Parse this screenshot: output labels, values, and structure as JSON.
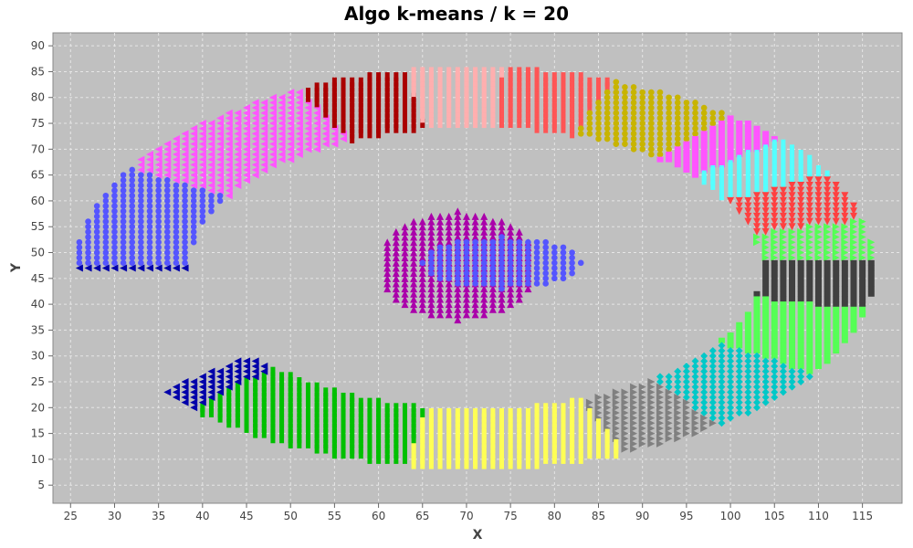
{
  "chart_data": {
    "type": "scatter",
    "title": "Algo k-means / k = 20",
    "xlabel": "X",
    "ylabel": "Y",
    "xlim": [
      23,
      119.5
    ],
    "ylim": [
      1.5,
      92.5
    ],
    "xticks": [
      25,
      30,
      35,
      40,
      45,
      50,
      55,
      60,
      65,
      70,
      75,
      80,
      85,
      90,
      95,
      100,
      105,
      110,
      115
    ],
    "yticks": [
      5,
      10,
      15,
      20,
      25,
      30,
      35,
      40,
      45,
      50,
      55,
      60,
      65,
      70,
      75,
      80,
      85,
      90
    ],
    "grid": true,
    "plot_background": "#c0c0c0",
    "series": [
      {
        "color": "#0000aa",
        "marker": "triangle-left",
        "region": {
          "type": "ring",
          "cx": 71,
          "cy": 47,
          "rx": 39,
          "ry": 33,
          "w": 6,
          "a0": 180,
          "a1": 218
        }
      },
      {
        "color": "#5555ff",
        "marker": "circle",
        "region": {
          "type": "ring",
          "cx": 71,
          "cy": 47,
          "rx": 39,
          "ry": 33,
          "w": 6,
          "a0": 150,
          "a1": 180
        }
      },
      {
        "color": "#ff55ff",
        "marker": "triangle-left",
        "region": {
          "type": "ring",
          "cx": 71,
          "cy": 47,
          "rx": 39,
          "ry": 33,
          "w": 6,
          "a0": 116,
          "a1": 150
        }
      },
      {
        "color": "#aa0000",
        "marker": "bar",
        "region": {
          "type": "ring",
          "cx": 71,
          "cy": 47,
          "rx": 39,
          "ry": 33,
          "w": 6,
          "a0": 100,
          "a1": 116
        }
      },
      {
        "color": "#ffafaf",
        "marker": "bar",
        "region": {
          "type": "ring",
          "cx": 71,
          "cy": 47,
          "rx": 39,
          "ry": 33,
          "w": 6,
          "a0": 86,
          "a1": 100
        }
      },
      {
        "color": "#ff5555",
        "marker": "bar",
        "region": {
          "type": "ring",
          "cx": 71,
          "cy": 47,
          "rx": 39,
          "ry": 33,
          "w": 6,
          "a0": 70,
          "a1": 86
        }
      },
      {
        "color": "#c8b400",
        "marker": "circle",
        "region": {
          "type": "ring",
          "cx": 71,
          "cy": 47,
          "rx": 39,
          "ry": 33,
          "w": 6,
          "a0": 50,
          "a1": 70
        }
      },
      {
        "color": "#ff55ff",
        "marker": "square",
        "region": {
          "type": "ring",
          "cx": 71,
          "cy": 47,
          "rx": 39,
          "ry": 33,
          "w": 6,
          "a0": 40,
          "a1": 50
        }
      },
      {
        "color": "#55ffff",
        "marker": "bar",
        "region": {
          "type": "ring",
          "cx": 71,
          "cy": 47,
          "rx": 39,
          "ry": 33,
          "w": 6,
          "a0": 28,
          "a1": 40
        }
      },
      {
        "color": "#ff4040",
        "marker": "triangle-down",
        "region": {
          "type": "ring",
          "cx": 71,
          "cy": 47,
          "rx": 39,
          "ry": 33,
          "w": 6,
          "a0": 14,
          "a1": 28
        }
      },
      {
        "color": "#55ff55",
        "marker": "triangle-right",
        "region": {
          "type": "ring",
          "cx": 71,
          "cy": 47,
          "rx": 39,
          "ry": 33,
          "w": 6,
          "a0": 3,
          "a1": 14
        }
      },
      {
        "color": "#404040",
        "marker": "square",
        "region": {
          "type": "ring",
          "cx": 71,
          "cy": 47,
          "rx": 39,
          "ry": 33,
          "w": 6,
          "a0": -12,
          "a1": 3
        }
      },
      {
        "color": "#55ff55",
        "marker": "square",
        "region": {
          "type": "ring",
          "cx": 71,
          "cy": 47,
          "rx": 39,
          "ry": 33,
          "w": 6,
          "a0": -32,
          "a1": -12
        }
      },
      {
        "color": "#00c8c8",
        "marker": "diamond",
        "region": {
          "type": "ring",
          "cx": 71,
          "cy": 47,
          "rx": 39,
          "ry": 33,
          "w": 6,
          "a0": -52,
          "a1": -32
        }
      },
      {
        "color": "#808080",
        "marker": "triangle-right",
        "region": {
          "type": "ring",
          "cx": 71,
          "cy": 47,
          "rx": 39,
          "ry": 33,
          "w": 6,
          "a0": -68,
          "a1": -52
        }
      },
      {
        "color": "#ffff55",
        "marker": "bar",
        "region": {
          "type": "ring",
          "cx": 71,
          "cy": 47,
          "rx": 39,
          "ry": 33,
          "w": 6,
          "a0": -100,
          "a1": -68
        }
      },
      {
        "color": "#00c000",
        "marker": "bar",
        "region": {
          "type": "ring",
          "cx": 71,
          "cy": 47,
          "rx": 39,
          "ry": 33,
          "w": 6,
          "a0": -135,
          "a1": -100
        }
      },
      {
        "color": "#0000aa",
        "marker": "triangle-left",
        "region": {
          "type": "ring",
          "cx": 71,
          "cy": 47,
          "rx": 39,
          "ry": 33,
          "w": 6,
          "a0": -142,
          "a1": -135
        }
      },
      {
        "color": "#aa00aa",
        "marker": "triangle-up",
        "region": {
          "type": "blob",
          "x0": 60,
          "x1": 78,
          "y0": 37,
          "y1": 58
        }
      },
      {
        "color": "#5555ff",
        "marker": "circle",
        "region": {
          "type": "blob",
          "x0": 65,
          "x1": 83,
          "y0": 43,
          "y1": 53
        }
      }
    ]
  }
}
